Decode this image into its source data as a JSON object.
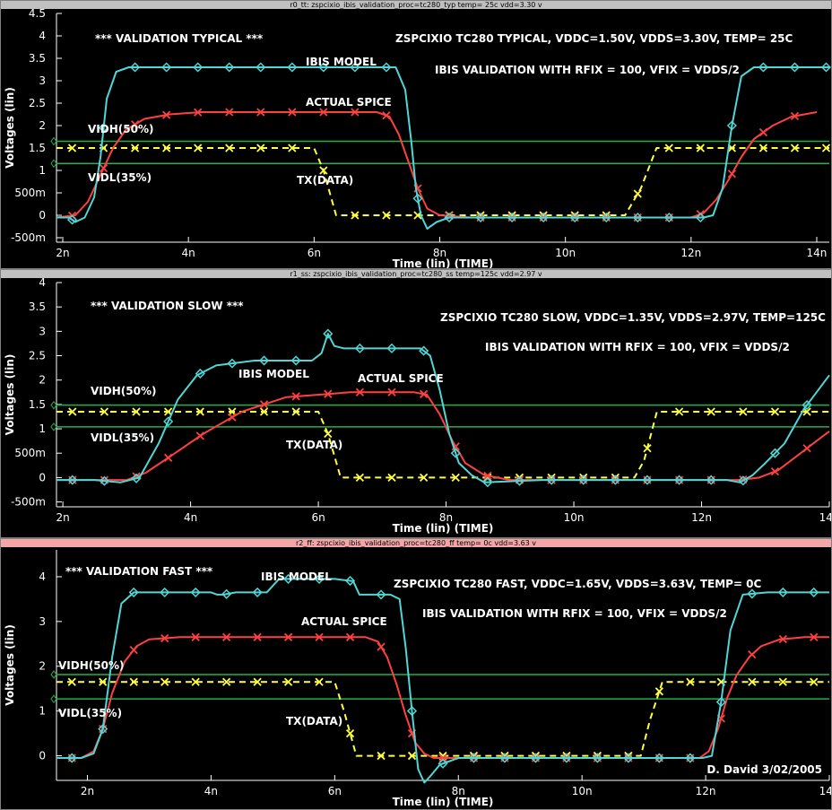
{
  "panels": [
    {
      "window_title": "r0_tt: zspcixio_ibis_validation_proc=tc280_typ temp= 25c vdd=3.30 v",
      "active": false,
      "header": "*** VALIDATION TYPICAL ***",
      "info_line1": "ZSPCIXIO TC280 TYPICAL, VDDC=1.50V, VDDS=3.30V, TEMP= 25C",
      "info_line2": "IBIS VALIDATION WITH RFIX = 100, VFIX = VDDS/2",
      "signature": "",
      "labels": {
        "ibis": "IBIS MODEL",
        "spice": "ACTUAL SPICE",
        "tx": "TX(DATA)",
        "vidh": "VIDH(50%)",
        "vidl": "VIDL(35%)"
      },
      "chart_data": {
        "type": "line",
        "ylabel": "Voltages (lin)",
        "xlabel": "Time (lin) (TIME)",
        "xlim": [
          1.9,
          14.2
        ],
        "ylim": [
          -0.6,
          4.5
        ],
        "xticks": [
          "2n",
          "4n",
          "6n",
          "8n",
          "10n",
          "12n",
          "14n"
        ],
        "yticks": [
          "4.5",
          "4",
          "3.5",
          "3",
          "2.5",
          "2",
          "1.5",
          "1",
          "500m",
          "0",
          "-500m"
        ],
        "vidh": 1.65,
        "vidl": 1.155,
        "series": [
          {
            "name": "IBIS MODEL",
            "color": "#4fd6d6",
            "marker": "diamond",
            "x": [
              1.9,
              2.1,
              2.2,
              2.35,
              2.5,
              2.6,
              2.7,
              2.85,
              3.05,
              3.4,
              4.0,
              5.0,
              6.0,
              7.0,
              7.3,
              7.45,
              7.55,
              7.62,
              7.7,
              7.8,
              7.95,
              8.15,
              8.5,
              9.5,
              10.5,
              11.5,
              12.0,
              12.2,
              12.35,
              12.5,
              12.65,
              12.8,
              13.0,
              13.4,
              14.2
            ],
            "y": [
              -0.05,
              -0.05,
              -0.15,
              -0.05,
              0.4,
              1.3,
              2.6,
              3.2,
              3.3,
              3.3,
              3.3,
              3.3,
              3.3,
              3.3,
              3.3,
              2.8,
              1.6,
              0.6,
              0.0,
              -0.3,
              -0.15,
              -0.05,
              -0.05,
              -0.05,
              -0.05,
              -0.05,
              -0.05,
              -0.05,
              0.0,
              0.6,
              2.0,
              3.1,
              3.3,
              3.3,
              3.3
            ]
          },
          {
            "name": "ACTUAL SPICE",
            "color": "#ff4040",
            "marker": "x",
            "x": [
              1.9,
              2.2,
              2.4,
              2.6,
              2.8,
              3.0,
              3.3,
              3.7,
              4.2,
              5.0,
              6.0,
              7.0,
              7.2,
              7.35,
              7.5,
              7.65,
              7.8,
              8.0,
              8.5,
              9.5,
              10.5,
              11.5,
              12.0,
              12.2,
              12.4,
              12.6,
              12.8,
              13.0,
              13.3,
              13.6,
              14.0
            ],
            "y": [
              -0.05,
              0.0,
              0.3,
              0.9,
              1.5,
              1.9,
              2.15,
              2.25,
              2.3,
              2.3,
              2.3,
              2.3,
              2.2,
              1.8,
              1.2,
              0.6,
              0.15,
              0.0,
              -0.05,
              -0.05,
              -0.05,
              -0.05,
              -0.05,
              0.05,
              0.35,
              0.8,
              1.3,
              1.7,
              2.0,
              2.2,
              2.3
            ]
          },
          {
            "name": "TX(DATA)",
            "color": "#ffff40",
            "marker": "x",
            "dashed": true,
            "x": [
              1.9,
              6.0,
              6.15,
              6.35,
              10.95,
              11.2,
              11.45,
              14.2
            ],
            "y": [
              1.5,
              1.5,
              1.0,
              0.0,
              0.0,
              0.6,
              1.5,
              1.5
            ]
          }
        ]
      }
    },
    {
      "window_title": "r1_ss: zspcixio_ibis_validation_proc=tc280_ss temp=125c vdd=2.97 v",
      "active": false,
      "header": "*** VALIDATION SLOW ***",
      "info_line1": "ZSPCIXIO TC280 SLOW, VDDC=1.35V, VDDS=2.97V, TEMP=125C",
      "info_line2": "IBIS VALIDATION WITH RFIX = 100, VFIX = VDDS/2",
      "signature": "",
      "labels": {
        "ibis": "IBIS MODEL",
        "spice": "ACTUAL SPICE",
        "tx": "TX(DATA)",
        "vidh": "VIDH(50%)",
        "vidl": "VIDL(35%)"
      },
      "chart_data": {
        "type": "line",
        "ylabel": "Voltages (lin)",
        "xlabel": "Time (lin) (TIME)",
        "xlim": [
          1.9,
          14.0
        ],
        "ylim": [
          -0.6,
          4.0
        ],
        "xticks": [
          "2n",
          "4n",
          "6n",
          "8n",
          "10n",
          "12n",
          "14n"
        ],
        "yticks": [
          "4",
          "3.5",
          "3",
          "2.5",
          "2",
          "1.5",
          "1",
          "500m",
          "0",
          "-500m"
        ],
        "vidh": 1.485,
        "vidl": 1.04,
        "series": [
          {
            "name": "IBIS MODEL",
            "color": "#4fd6d6",
            "marker": "diamond",
            "x": [
              1.9,
              2.5,
              2.9,
              3.2,
              3.5,
              3.8,
              4.1,
              4.4,
              5.0,
              5.9,
              6.05,
              6.15,
              6.25,
              6.4,
              7.0,
              7.6,
              7.75,
              7.9,
              8.05,
              8.2,
              8.4,
              8.6,
              9.5,
              10.5,
              11.5,
              12.4,
              12.6,
              12.8,
              13.0,
              13.3,
              13.6,
              14.0
            ],
            "y": [
              -0.05,
              -0.05,
              -0.1,
              0.0,
              0.7,
              1.6,
              2.1,
              2.3,
              2.4,
              2.4,
              2.55,
              2.95,
              2.7,
              2.65,
              2.65,
              2.65,
              2.5,
              1.8,
              0.9,
              0.3,
              0.05,
              -0.1,
              -0.05,
              -0.05,
              -0.05,
              -0.05,
              -0.1,
              0.05,
              0.3,
              0.7,
              1.4,
              2.1
            ]
          },
          {
            "name": "ACTUAL SPICE",
            "color": "#ff4040",
            "marker": "x",
            "x": [
              1.9,
              2.5,
              3.0,
              3.3,
              3.7,
              4.2,
              4.8,
              5.5,
              6.5,
              7.5,
              7.7,
              7.9,
              8.1,
              8.3,
              8.6,
              9.0,
              10.0,
              11.0,
              12.0,
              12.6,
              12.9,
              13.2,
              13.5,
              13.8,
              14.0
            ],
            "y": [
              -0.05,
              -0.05,
              -0.05,
              0.1,
              0.45,
              0.9,
              1.35,
              1.65,
              1.75,
              1.75,
              1.7,
              1.3,
              0.75,
              0.3,
              0.05,
              -0.05,
              -0.05,
              -0.05,
              -0.05,
              -0.05,
              0.0,
              0.15,
              0.45,
              0.75,
              0.95
            ]
          },
          {
            "name": "TX(DATA)",
            "color": "#ffff40",
            "marker": "x",
            "dashed": true,
            "x": [
              1.9,
              6.0,
              6.15,
              6.35,
              10.95,
              11.1,
              11.3,
              14.0
            ],
            "y": [
              1.35,
              1.35,
              0.9,
              0.0,
              0.0,
              0.35,
              1.35,
              1.35
            ]
          }
        ]
      }
    },
    {
      "window_title": "r2_ff: zspcixio_ibis_validation_proc=tc280_ff temp= 0c vdd=3.63 v",
      "active": true,
      "header": "*** VALIDATION FAST ***",
      "info_line1": "ZSPCIXIO TC280 FAST, VDDC=1.65V, VDDS=3.63V, TEMP= 0C",
      "info_line2": "IBIS VALIDATION WITH RFIX = 100, VFIX = VDDS/2",
      "signature": "D. David 3/02/2005",
      "labels": {
        "ibis": "IBIS MODEL",
        "spice": "ACTUAL SPICE",
        "tx": "TX(DATA)",
        "vidh": "VIDH(50%)",
        "vidl": "VIDL(35%)"
      },
      "chart_data": {
        "type": "line",
        "ylabel": "Voltages (lin)",
        "xlabel": "Time (lin) (TIME)",
        "xlim": [
          1.5,
          14.0
        ],
        "ylim": [
          -0.55,
          4.6
        ],
        "xticks": [
          "2n",
          "4n",
          "6n",
          "8n",
          "10n",
          "12n",
          "14n"
        ],
        "yticks": [
          "4",
          "3",
          "2",
          "1",
          "0"
        ],
        "vidh": 1.815,
        "vidl": 1.27,
        "series": [
          {
            "name": "IBIS MODEL",
            "color": "#4fd6d6",
            "marker": "diamond",
            "x": [
              1.5,
              1.9,
              2.1,
              2.25,
              2.4,
              2.55,
              2.75,
              3.0,
              4.0,
              4.1,
              4.2,
              4.4,
              4.9,
              5.0,
              5.1,
              5.3,
              6.0,
              6.3,
              6.4,
              6.5,
              6.9,
              7.05,
              7.15,
              7.25,
              7.35,
              7.45,
              7.55,
              7.7,
              8.0,
              9.0,
              10.0,
              11.0,
              11.8,
              11.95,
              12.1,
              12.25,
              12.4,
              12.6,
              13.0,
              14.0
            ],
            "y": [
              -0.05,
              -0.05,
              0.05,
              0.6,
              2.2,
              3.4,
              3.65,
              3.65,
              3.65,
              3.6,
              3.6,
              3.65,
              3.65,
              3.8,
              3.95,
              3.95,
              3.95,
              3.9,
              3.6,
              3.6,
              3.6,
              3.5,
              2.4,
              1.0,
              -0.3,
              -0.6,
              -0.45,
              -0.2,
              -0.05,
              -0.05,
              -0.05,
              -0.05,
              -0.05,
              -0.05,
              0.0,
              1.2,
              2.8,
              3.6,
              3.65,
              3.65
            ]
          },
          {
            "name": "ACTUAL SPICE",
            "color": "#ff4040",
            "marker": "x",
            "x": [
              1.5,
              1.9,
              2.1,
              2.25,
              2.4,
              2.6,
              2.8,
              3.0,
              3.5,
              4.5,
              5.5,
              6.5,
              6.7,
              6.85,
              7.0,
              7.15,
              7.3,
              7.45,
              7.6,
              8.0,
              9.0,
              10.0,
              11.0,
              11.9,
              12.05,
              12.2,
              12.35,
              12.5,
              12.7,
              12.9,
              13.2,
              13.6,
              14.0
            ],
            "y": [
              -0.05,
              -0.05,
              0.1,
              0.6,
              1.4,
              2.1,
              2.45,
              2.6,
              2.65,
              2.65,
              2.65,
              2.65,
              2.55,
              2.2,
              1.6,
              0.9,
              0.3,
              0.05,
              -0.05,
              -0.05,
              -0.05,
              -0.05,
              -0.05,
              -0.05,
              0.1,
              0.6,
              1.3,
              1.8,
              2.2,
              2.45,
              2.6,
              2.65,
              2.65
            ]
          },
          {
            "name": "TX(DATA)",
            "color": "#ffff40",
            "marker": "x",
            "dashed": true,
            "x": [
              1.5,
              6.0,
              6.15,
              6.35,
              10.95,
              11.1,
              11.3,
              14.0
            ],
            "y": [
              1.65,
              1.65,
              1.0,
              0.0,
              0.0,
              0.8,
              1.65,
              1.65
            ]
          }
        ]
      }
    }
  ]
}
